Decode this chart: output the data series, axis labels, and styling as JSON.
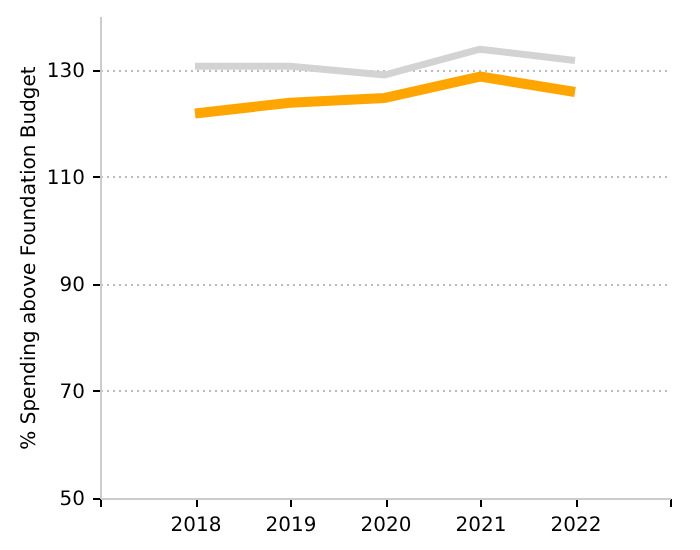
{
  "chart_data": {
    "type": "line",
    "ylabel": "% Spending above Foundation Budget",
    "x": [
      2018,
      2019,
      2020,
      2021,
      2022
    ],
    "series": [
      {
        "color": "#d3d3d3",
        "values": [
          130.6,
          130.6,
          129,
          133.8,
          131.7
        ]
      },
      {
        "color": "#ffa500",
        "values": [
          121.8,
          123.8,
          124.7,
          128.7,
          125.8
        ]
      }
    ],
    "xlim": [
      2017,
      2023
    ],
    "xticks": [
      {
        "value": 2017,
        "label": null
      },
      2018,
      2019,
      2020,
      2021,
      2022,
      {
        "value": 2023,
        "label": null
      }
    ],
    "ylim": [
      50,
      140
    ],
    "yticks": [
      50,
      70,
      90,
      110,
      130
    ],
    "grid": "y",
    "marker": "none",
    "line_style": "solid"
  }
}
